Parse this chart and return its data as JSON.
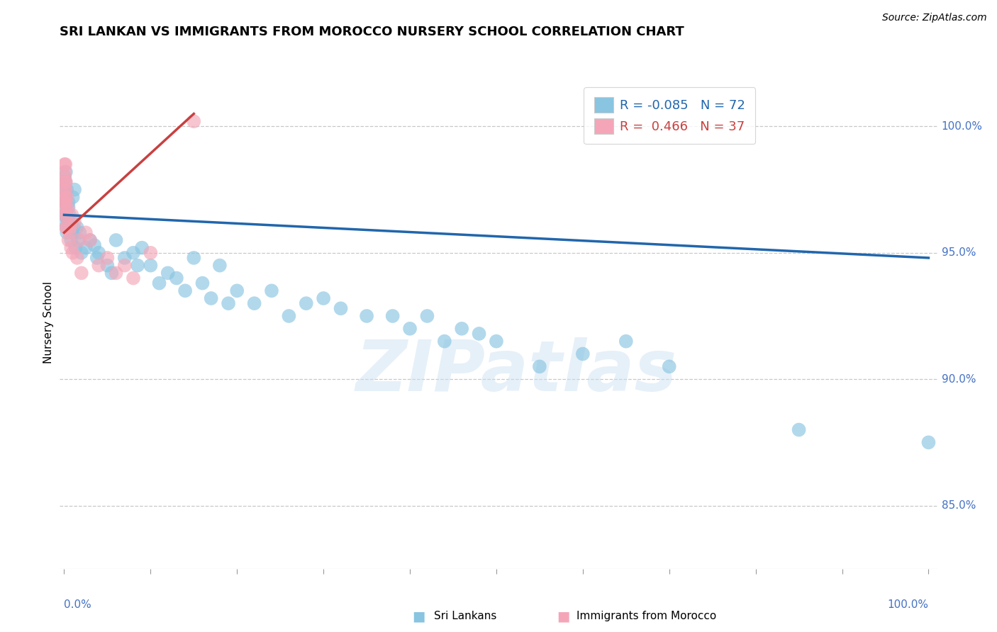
{
  "title": "SRI LANKAN VS IMMIGRANTS FROM MOROCCO NURSERY SCHOOL CORRELATION CHART",
  "source": "Source: ZipAtlas.com",
  "ylabel": "Nursery School",
  "watermark": "ZIPatlas",
  "legend": {
    "blue_R": "-0.085",
    "blue_N": "72",
    "pink_R": "0.466",
    "pink_N": "37"
  },
  "blue_color": "#89c4e1",
  "pink_color": "#f4a6b8",
  "trend_blue": "#2166ac",
  "trend_pink": "#c94040",
  "right_yticks": [
    85.0,
    90.0,
    95.0,
    100.0
  ],
  "ymin": 82.5,
  "ymax": 102.0,
  "xmin": -0.5,
  "xmax": 101.0,
  "blue_scatter": {
    "x": [
      0.05,
      0.05,
      0.05,
      0.05,
      0.08,
      0.1,
      0.1,
      0.15,
      0.2,
      0.2,
      0.25,
      0.3,
      0.3,
      0.4,
      0.5,
      0.5,
      0.6,
      0.7,
      0.8,
      0.9,
      1.0,
      1.0,
      1.1,
      1.2,
      1.3,
      1.5,
      1.6,
      1.8,
      2.0,
      2.5,
      3.0,
      3.5,
      3.8,
      4.0,
      5.0,
      5.5,
      6.0,
      7.0,
      8.0,
      8.5,
      9.0,
      10.0,
      11.0,
      12.0,
      13.0,
      14.0,
      15.0,
      16.0,
      17.0,
      18.0,
      19.0,
      20.0,
      22.0,
      24.0,
      26.0,
      28.0,
      30.0,
      32.0,
      35.0,
      38.0,
      40.0,
      42.0,
      44.0,
      46.0,
      48.0,
      50.0,
      55.0,
      60.0,
      65.0,
      70.0,
      85.0,
      100.0
    ],
    "y": [
      97.5,
      97.0,
      96.5,
      98.0,
      96.8,
      97.2,
      96.2,
      97.8,
      96.5,
      98.2,
      96.0,
      97.5,
      95.8,
      96.3,
      96.8,
      97.0,
      96.5,
      96.0,
      95.5,
      96.2,
      97.2,
      95.8,
      96.0,
      97.5,
      95.2,
      96.0,
      95.5,
      95.8,
      95.0,
      95.2,
      95.5,
      95.3,
      94.8,
      95.0,
      94.5,
      94.2,
      95.5,
      94.8,
      95.0,
      94.5,
      95.2,
      94.5,
      93.8,
      94.2,
      94.0,
      93.5,
      94.8,
      93.8,
      93.2,
      94.5,
      93.0,
      93.5,
      93.0,
      93.5,
      92.5,
      93.0,
      93.2,
      92.8,
      92.5,
      92.5,
      92.0,
      92.5,
      91.5,
      92.0,
      91.8,
      91.5,
      90.5,
      91.0,
      91.5,
      90.5,
      88.0,
      87.5
    ]
  },
  "pink_scatter": {
    "x": [
      0.02,
      0.03,
      0.05,
      0.05,
      0.07,
      0.08,
      0.1,
      0.1,
      0.12,
      0.15,
      0.15,
      0.18,
      0.2,
      0.2,
      0.25,
      0.3,
      0.35,
      0.4,
      0.5,
      0.6,
      0.7,
      0.8,
      0.9,
      1.0,
      1.2,
      1.5,
      1.8,
      2.0,
      2.5,
      3.0,
      4.0,
      5.0,
      6.0,
      7.0,
      8.0,
      10.0,
      15.0
    ],
    "y": [
      97.5,
      96.5,
      98.5,
      97.0,
      98.0,
      97.2,
      98.2,
      96.8,
      97.8,
      97.0,
      98.5,
      97.5,
      96.0,
      97.8,
      96.5,
      96.0,
      97.2,
      96.8,
      95.5,
      95.8,
      96.0,
      95.2,
      96.5,
      95.0,
      96.2,
      94.8,
      95.5,
      94.2,
      95.8,
      95.5,
      94.5,
      94.8,
      94.2,
      94.5,
      94.0,
      95.0,
      100.2
    ]
  },
  "blue_trendline": {
    "x_start": 0.0,
    "x_end": 100.0,
    "y_start": 96.5,
    "y_end": 94.8
  },
  "pink_trendline": {
    "x_start": 0.0,
    "x_end": 15.0,
    "y_start": 95.8,
    "y_end": 100.5
  }
}
